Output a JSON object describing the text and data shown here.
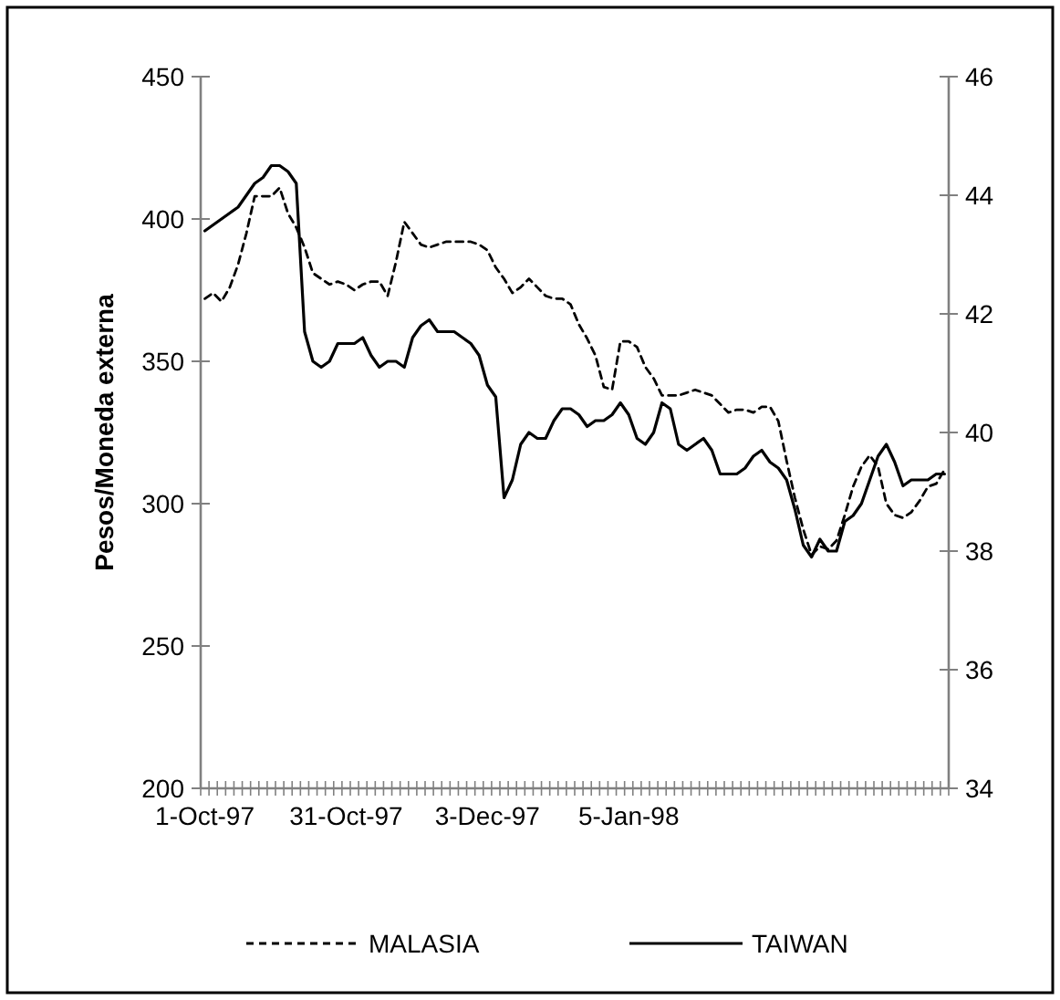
{
  "chart_data": {
    "type": "line",
    "ylabel": "Pesos/Moneda externa",
    "categories": [
      "1-Oct-97",
      null,
      null,
      null,
      null,
      null,
      null,
      null,
      null,
      null,
      null,
      null,
      null,
      null,
      null,
      null,
      null,
      "31-Oct-97",
      null,
      null,
      null,
      null,
      null,
      null,
      null,
      null,
      null,
      null,
      null,
      null,
      null,
      null,
      null,
      null,
      "3-Dec-97",
      null,
      null,
      null,
      null,
      null,
      null,
      null,
      null,
      null,
      null,
      null,
      null,
      null,
      null,
      null,
      null,
      "5-Jan-98",
      null,
      null,
      null,
      null,
      null,
      null,
      null,
      null,
      null,
      null,
      null,
      null,
      null,
      null,
      null,
      null,
      null,
      null,
      null,
      null,
      null,
      null,
      null,
      null,
      null,
      null,
      null,
      null,
      null,
      null,
      null,
      null,
      null,
      null,
      null,
      null,
      null,
      null
    ],
    "ylim": [
      200,
      450
    ],
    "yticks": [
      200,
      250,
      300,
      350,
      400,
      450
    ],
    "y2lim": [
      34,
      46
    ],
    "y2ticks": [
      34,
      36,
      38,
      40,
      42,
      44,
      46
    ],
    "grid": false,
    "legend": "bottom",
    "marker": "none",
    "series": [
      {
        "name": "MALASIA",
        "color": "#000000",
        "line_style": "dashed",
        "values": [
          372,
          374,
          371,
          376,
          384,
          395,
          408,
          408,
          408,
          411,
          402,
          397,
          390,
          381,
          379,
          377,
          378,
          377,
          375,
          377,
          378,
          378,
          373,
          385,
          399,
          395,
          391,
          390,
          391,
          392,
          392,
          392,
          392,
          391,
          389,
          383,
          379,
          374,
          376,
          379,
          376,
          373,
          372,
          372,
          370,
          363,
          358,
          352,
          341,
          340,
          357,
          357,
          355,
          348,
          344,
          338,
          338,
          338,
          339,
          340,
          339,
          338,
          335,
          332,
          333,
          333,
          332,
          334,
          334,
          329,
          315,
          302,
          291,
          282,
          285,
          284,
          287,
          296,
          306,
          313,
          317,
          313,
          300,
          296,
          295,
          297,
          301,
          306,
          307,
          312
        ]
      },
      {
        "name": "TAIWAN",
        "color": "#000000",
        "line_style": "solid",
        "axis": "y2",
        "values": [
          43.4,
          43.5,
          43.6,
          43.7,
          43.8,
          44.0,
          44.2,
          44.3,
          44.5,
          44.5,
          44.4,
          44.2,
          41.7,
          41.2,
          41.1,
          41.2,
          41.5,
          41.5,
          41.5,
          41.6,
          41.3,
          41.1,
          41.2,
          41.2,
          41.1,
          41.6,
          41.8,
          41.9,
          41.7,
          41.7,
          41.7,
          41.6,
          41.5,
          41.3,
          40.8,
          40.6,
          38.9,
          39.2,
          39.8,
          40.0,
          39.9,
          39.9,
          40.2,
          40.4,
          40.4,
          40.3,
          40.1,
          40.2,
          40.2,
          40.3,
          40.5,
          40.3,
          39.9,
          39.8,
          40.0,
          40.5,
          40.4,
          39.8,
          39.7,
          39.8,
          39.9,
          39.7,
          39.3,
          39.3,
          39.3,
          39.4,
          39.6,
          39.7,
          39.5,
          39.4,
          39.2,
          38.7,
          38.1,
          37.9,
          38.2,
          38.0,
          38.0,
          38.5,
          38.6,
          38.8,
          39.2,
          39.6,
          39.8,
          39.5,
          39.1,
          39.2,
          39.2,
          39.2,
          39.3,
          39.3
        ]
      }
    ]
  }
}
